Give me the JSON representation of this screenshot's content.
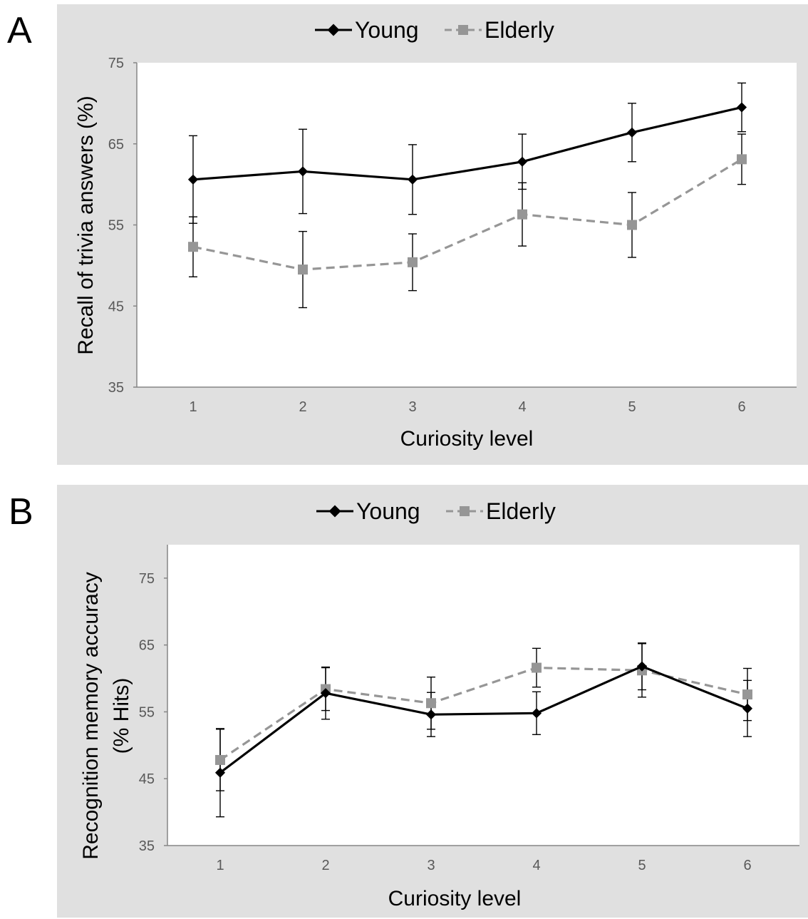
{
  "panels": [
    {
      "letter": "A",
      "legend": {
        "young_label": "Young",
        "elderly_label": "Elderly"
      }
    },
    {
      "letter": "B",
      "legend": {
        "young_label": "Young",
        "elderly_label": "Elderly"
      }
    }
  ],
  "colors": {
    "young": "#000000",
    "elderly": "#969696",
    "panel_bg": "#e0e0e0",
    "plot_bg": "#ffffff",
    "axis": "#868686",
    "tick_text": "#595959",
    "label_text": "#000000"
  },
  "chart_data": [
    {
      "type": "line",
      "panel": "A",
      "title": "",
      "xlabel": "Curiosity level",
      "ylabel": "Recall of trivia answers (%)",
      "categories": [
        "1",
        "2",
        "3",
        "4",
        "5",
        "6"
      ],
      "ylim": [
        35,
        75
      ],
      "yticks": [
        "35",
        "45",
        "55",
        "65",
        "75"
      ],
      "grid": false,
      "legend_position": "top-center",
      "series": [
        {
          "name": "Young",
          "style": "solid",
          "marker": "diamond",
          "values": [
            60.6,
            61.6,
            60.6,
            62.8,
            66.4,
            69.5
          ],
          "error": [
            5.4,
            5.2,
            4.3,
            3.4,
            3.6,
            3.0
          ]
        },
        {
          "name": "Elderly",
          "style": "dashed",
          "marker": "square",
          "values": [
            52.3,
            49.5,
            50.4,
            56.3,
            55.0,
            63.1
          ],
          "error": [
            3.7,
            4.7,
            3.5,
            3.9,
            4.0,
            3.1
          ]
        }
      ]
    },
    {
      "type": "line",
      "panel": "B",
      "title": "",
      "xlabel": "Curiosity level",
      "ylabel": [
        "Recognition memory accuracy",
        "(% Hits)"
      ],
      "categories": [
        "1",
        "2",
        "3",
        "4",
        "5",
        "6"
      ],
      "ylim": [
        35,
        80
      ],
      "yticks": [
        "35",
        "45",
        "55",
        "65",
        "75"
      ],
      "grid": false,
      "legend_position": "top-center",
      "series": [
        {
          "name": "Young",
          "style": "solid",
          "marker": "diamond",
          "values": [
            45.9,
            57.8,
            54.6,
            54.8,
            61.8,
            55.5
          ],
          "error": [
            6.6,
            3.9,
            3.3,
            3.2,
            3.5,
            4.2
          ]
        },
        {
          "name": "Elderly",
          "style": "dashed",
          "marker": "square",
          "values": [
            47.8,
            58.4,
            56.3,
            61.6,
            61.2,
            57.6
          ],
          "error": [
            4.6,
            3.2,
            3.9,
            2.9,
            4.0,
            3.9
          ]
        }
      ]
    }
  ]
}
